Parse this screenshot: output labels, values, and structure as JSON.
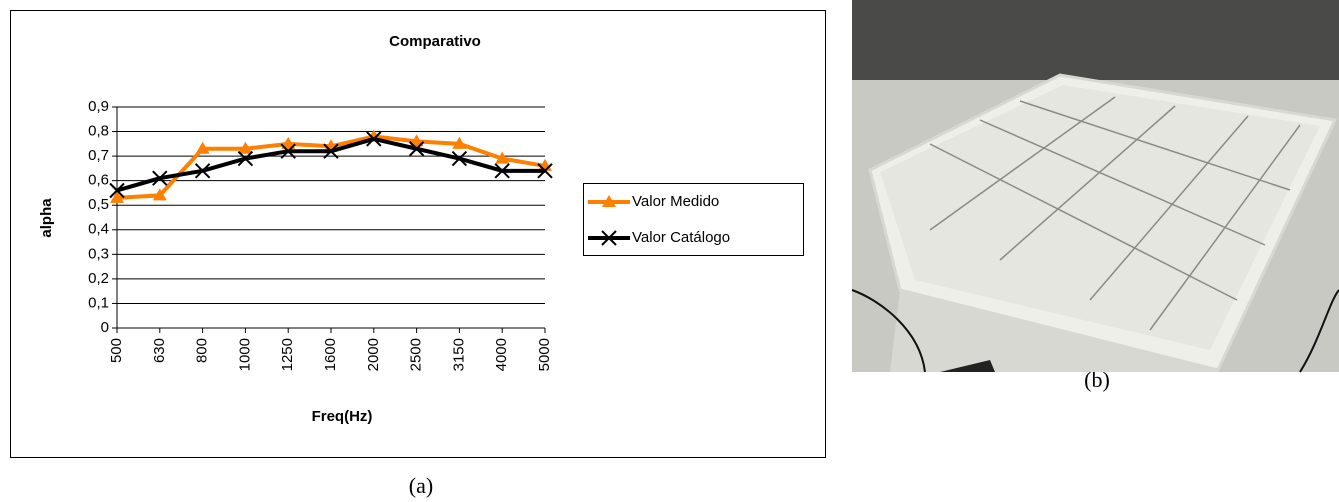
{
  "chart_data": {
    "type": "line",
    "title": "Comparativo",
    "x_label": "Freq(Hz)",
    "y_label": "alpha",
    "categories": [
      "500",
      "630",
      "800",
      "1000",
      "1250",
      "1600",
      "2000",
      "2500",
      "3150",
      "4000",
      "5000"
    ],
    "series": [
      {
        "name": "Valor Medido",
        "color": "#ff7f00",
        "marker": "triangle",
        "values": [
          0.53,
          0.54,
          0.73,
          0.73,
          0.75,
          0.74,
          0.78,
          0.76,
          0.75,
          0.69,
          0.66
        ]
      },
      {
        "name": "Valor Catálogo",
        "color": "#000000",
        "marker": "x",
        "values": [
          0.56,
          0.61,
          0.64,
          0.69,
          0.72,
          0.72,
          0.77,
          0.73,
          0.69,
          0.64,
          0.64
        ]
      }
    ],
    "ylim": [
      0,
      0.9
    ],
    "yticks": [
      0,
      {
        "value": 0.1,
        "label": "0,1"
      },
      {
        "value": 0.2,
        "label": "0,2"
      },
      {
        "value": 0.3,
        "label": "0,3"
      },
      {
        "value": 0.4,
        "label": "0,4"
      },
      {
        "value": 0.5,
        "label": "0,5"
      },
      {
        "value": 0.6,
        "label": "0,6"
      },
      {
        "value": 0.7,
        "label": "0,7"
      },
      {
        "value": 0.8,
        "label": "0,8"
      },
      {
        "value": 0.9,
        "label": "0,9"
      }
    ],
    "grid": true,
    "legend": "right"
  },
  "captions": [
    "(a)",
    "(b)"
  ]
}
